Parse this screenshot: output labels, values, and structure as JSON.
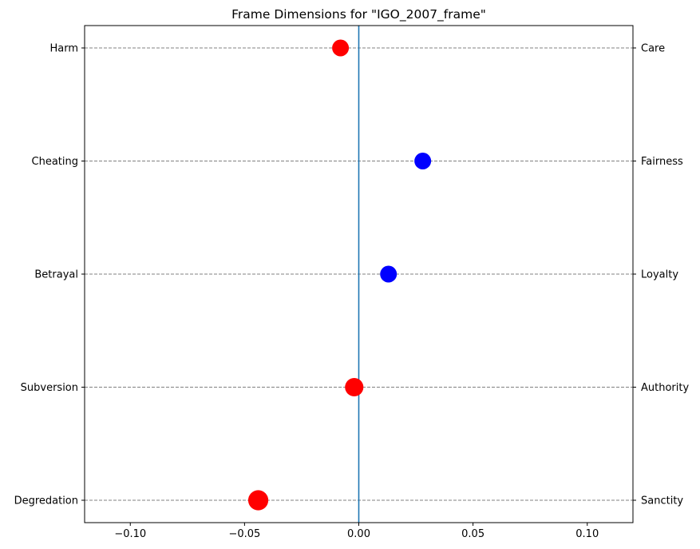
{
  "chart_data": {
    "type": "scatter",
    "title": "Frame Dimensions for \"IGO_2007_frame\"",
    "xlabel": "",
    "ylabel": "",
    "xlim": [
      -0.12,
      0.12
    ],
    "x_ticks": [
      -0.1,
      -0.05,
      0.0,
      0.05,
      0.1
    ],
    "x_tick_labels": [
      "−0.10",
      "−0.05",
      "0.00",
      "0.05",
      "0.10"
    ],
    "grid": "horizontal dashed at each category",
    "zero_line": 0.0,
    "left_labels": [
      "Harm",
      "Cheating",
      "Betrayal",
      "Subversion",
      "Degredation"
    ],
    "right_labels": [
      "Care",
      "Fairness",
      "Loyalty",
      "Authority",
      "Sanctity"
    ],
    "points": [
      {
        "x": -0.008,
        "size": 1.0,
        "color": "#ff0000"
      },
      {
        "x": 0.028,
        "size": 1.0,
        "color": "#0000ff"
      },
      {
        "x": 0.013,
        "size": 1.0,
        "color": "#0000ff"
      },
      {
        "x": -0.002,
        "size": 1.1,
        "color": "#ff0000"
      },
      {
        "x": -0.044,
        "size": 1.2,
        "color": "#ff0000"
      }
    ],
    "colors": {
      "negative": "#ff0000",
      "positive": "#0000ff",
      "zero_line": "#1f77b4",
      "grid": "#808080"
    }
  }
}
